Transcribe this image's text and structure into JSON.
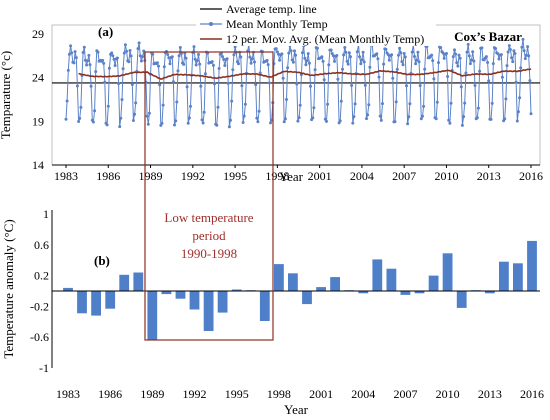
{
  "chart_data": [
    {
      "type": "line",
      "panel_label": "(a)",
      "location": "Cox’s Bazar",
      "xlabel": "Year",
      "ylabel": "Temparature (°c)",
      "ylim": [
        14,
        29
      ],
      "yticks": [
        "14",
        "19",
        "24",
        "29"
      ],
      "xlim": [
        1983,
        2016
      ],
      "xticks": [
        "1983",
        "1986",
        "1989",
        "1992",
        "1995",
        "1998",
        "2001",
        "2004",
        "2007",
        "2010",
        "2013",
        "2016"
      ],
      "legend_position": "top-right",
      "average_temp": 23.4,
      "monthly_climatology": [
        19.2,
        20.9,
        24.9,
        27.0,
        27.4,
        26.5,
        26.0,
        25.9,
        26.6,
        26.1,
        23.4,
        19.0
      ],
      "series": [
        {
          "name": "Average temp. line",
          "color": "#000000"
        },
        {
          "name": "Mean Monthly Temp",
          "color": "#5b82c9"
        },
        {
          "name": "12 per. Mov. Avg. (Mean Monthly Temp)",
          "color": "#8b2f1e"
        }
      ]
    },
    {
      "type": "bar",
      "panel_label": "(b)",
      "xlabel": "Year",
      "ylabel": "Temperature anomaly (°C)",
      "ylim": [
        -1,
        1
      ],
      "yticks": [
        "-1",
        "-0.6",
        "-0.2",
        "0.2",
        "0.6",
        "1"
      ],
      "xticks": [
        "1983",
        "1986",
        "1989",
        "1992",
        "1995",
        "1998",
        "2001",
        "2004",
        "2007",
        "2010",
        "2013",
        "2016"
      ],
      "color": "#4f7fc9",
      "categories": [
        1983,
        1984,
        1985,
        1986,
        1987,
        1988,
        1989,
        1990,
        1991,
        1992,
        1993,
        1994,
        1995,
        1996,
        1997,
        1998,
        1999,
        2000,
        2001,
        2002,
        2003,
        2004,
        2005,
        2006,
        2007,
        2008,
        2009,
        2010,
        2011,
        2012,
        2013,
        2014,
        2015,
        2016
      ],
      "values": [
        0.04,
        -0.29,
        -0.32,
        -0.23,
        0.21,
        0.24,
        -0.64,
        -0.04,
        -0.1,
        -0.24,
        -0.52,
        -0.28,
        0.02,
        0.01,
        -0.39,
        0.35,
        0.23,
        -0.17,
        0.05,
        0.18,
        0.01,
        -0.03,
        0.41,
        0.29,
        -0.05,
        -0.03,
        0.2,
        0.49,
        -0.22,
        0.01,
        -0.03,
        0.38,
        0.36,
        0.65
      ]
    }
  ],
  "annotation": {
    "text_lines": [
      "Low temperature",
      "period",
      "1990-1998"
    ],
    "box_color": "#8b2f1e"
  }
}
